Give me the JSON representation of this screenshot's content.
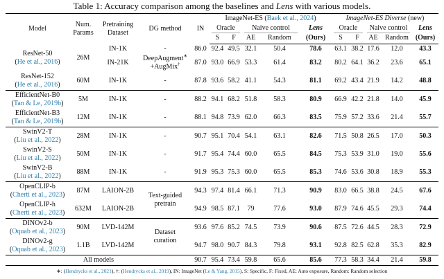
{
  "caption": [
    {
      "t": "Table 1: Accuracy comparison among the baselines and "
    },
    {
      "t": "Lens",
      "i": true
    },
    {
      "t": " with various models."
    }
  ],
  "colors": {
    "citation_link": "#2c7fad",
    "rule_gray": "#a9a9a9"
  },
  "header": {
    "left": [
      [
        "Model"
      ],
      [
        "Num.",
        "Params"
      ],
      [
        "Pretraining",
        "Dataset"
      ],
      [
        "DG method"
      ],
      [
        "IN"
      ]
    ],
    "groups": [
      {
        "label": [
          {
            "t": "ImageNet-ES ("
          },
          {
            "t": "Baek et al., 2024",
            "cite": true
          },
          {
            "t": ")"
          }
        ],
        "subs": [
          {
            "label": [
              {
                "t": "Oracle"
              }
            ],
            "span": 2,
            "rule": true
          },
          {
            "label": [
              {
                "t": "Naive control"
              }
            ],
            "span": 2,
            "rule": true
          },
          {
            "label": [
              {
                "t": "Lens",
                "i": true,
                "b": true
              }
            ],
            "span": 1,
            "rule": false
          }
        ],
        "leaves": [
          {
            "t": "S"
          },
          {
            "t": "F"
          },
          {
            "t": "AE"
          },
          {
            "t": "Random"
          },
          {
            "t": "(Ours)",
            "b": true
          }
        ]
      },
      {
        "label": [
          {
            "t": "ImageNet-ES Diverse",
            "i": true
          },
          {
            "t": " (new)"
          }
        ],
        "subs": [
          {
            "label": [
              {
                "t": "Oracle"
              }
            ],
            "span": 2,
            "rule": true
          },
          {
            "label": [
              {
                "t": "Naive control"
              }
            ],
            "span": 2,
            "rule": true
          },
          {
            "label": [
              {
                "t": "Lens",
                "i": true,
                "b": true
              }
            ],
            "span": 1,
            "rule": false
          }
        ],
        "leaves": [
          {
            "t": "S"
          },
          {
            "t": "F"
          },
          {
            "t": "AE"
          },
          {
            "t": "Random"
          },
          {
            "t": "(Ours)",
            "b": true
          }
        ]
      }
    ]
  },
  "rows": [
    {
      "model": "ResNet-50",
      "cite": "He et al., 2016",
      "model_span": 2,
      "params": "26M",
      "params_span": 2,
      "dataset": "IN-1K",
      "dg": [
        [
          "-"
        ]
      ],
      "vals": [
        "86.0",
        "92.4",
        "49.5",
        "32.1",
        "50.4",
        "78.6",
        "63.1",
        "38.2",
        "17.6",
        "12.0",
        "43.3"
      ]
    },
    {
      "dataset": "IN-21K",
      "dg": [
        [
          {
            "t": "DeepAugment"
          },
          {
            "t": "∗",
            "sup": true
          }
        ],
        [
          {
            "t": "+AugMix"
          },
          {
            "t": "†",
            "sup": true
          }
        ]
      ],
      "vals": [
        "87.0",
        "93.0",
        "66.9",
        "53.3",
        "61.4",
        "83.2",
        "80.2",
        "64.1",
        "36.2",
        "23.6",
        "65.1"
      ]
    },
    {
      "model": "ResNet-152",
      "cite": "He et al., 2016",
      "params": "60M",
      "dataset": "IN-1K",
      "dg": [
        [
          "-"
        ]
      ],
      "vals": [
        "87.8",
        "93.6",
        "58.2",
        "41.1",
        "54.3",
        "81.1",
        "69.2",
        "43.4",
        "21.9",
        "14.2",
        "48.8"
      ]
    },
    {
      "group_start": true,
      "model": "EfficientNet-B0",
      "cite": "Tan & Le, 2019b",
      "params": "5M",
      "dataset": "IN-1K",
      "dg": [
        [
          "-"
        ]
      ],
      "vals": [
        "88.2",
        "94.1",
        "68.2",
        "51.8",
        "58.3",
        "80.9",
        "66.9",
        "42.2",
        "21.8",
        "14.0",
        "45.9"
      ]
    },
    {
      "model": "EfficientNet-B3",
      "cite": "Tan & Le, 2019b",
      "params": "12M",
      "dataset": "IN-1K",
      "dg": [
        [
          "-"
        ]
      ],
      "vals": [
        "88.1",
        "94.8",
        "73.9",
        "62.0",
        "66.3",
        "83.5",
        "75.9",
        "57.2",
        "33.6",
        "21.4",
        "55.7"
      ]
    },
    {
      "group_start": true,
      "model": "SwinV2-T",
      "cite": "Liu et al., 2022",
      "params": "28M",
      "dataset": "IN-1K",
      "dg": [
        [
          "-"
        ]
      ],
      "vals": [
        "90.7",
        "95.1",
        "70.4",
        "54.1",
        "63.1",
        "82.6",
        "71.5",
        "50.8",
        "26.5",
        "17.0",
        "50.3"
      ]
    },
    {
      "model": "SwinV2-S",
      "cite": "Liu et al., 2022",
      "params": "50M",
      "dataset": "IN-1K",
      "dg": [
        [
          "-"
        ]
      ],
      "vals": [
        "91.7",
        "95.4",
        "74.4",
        "60.0",
        "65.5",
        "84.5",
        "75.3",
        "53.9",
        "31.0",
        "19.0",
        "55.6"
      ]
    },
    {
      "model": "SwinV2-B",
      "cite": "Liu et al., 2022",
      "params": "88M",
      "dataset": "IN-1K",
      "dg": [
        [
          "-"
        ]
      ],
      "vals": [
        "91.9",
        "95.3",
        "75.3",
        "60.0",
        "65.5",
        "85.3",
        "74.6",
        "53.6",
        "30.8",
        "18.9",
        "55.3"
      ]
    },
    {
      "group_start": true,
      "model": "OpenCLIP-b",
      "cite": "Cherti et al., 2023",
      "params": "87M",
      "dataset": "LAION-2B",
      "dg": [
        [
          "Text-guided"
        ],
        [
          "pretrain"
        ]
      ],
      "dg_span": 2,
      "vals": [
        "94.3",
        "97.4",
        "81.4",
        "66.1",
        "71.3",
        "90.9",
        "83.0",
        "66.5",
        "38.8",
        "24.5",
        "67.6"
      ]
    },
    {
      "model": "OpenCLIP-h",
      "cite": "Cherti et al., 2023",
      "params": "632M",
      "dataset": "LAION-2B",
      "vals": [
        "94.9",
        "98.5",
        "87.1",
        "79",
        "77.6",
        "93.0",
        "87.9",
        "74.6",
        "45.5",
        "29.3",
        "74.4"
      ]
    },
    {
      "group_start": true,
      "model": "DINOv2-b",
      "cite": "Oquab et al., 2023",
      "params": "90M",
      "dataset": "LVD-142M",
      "dg": [
        [
          "Dataset"
        ],
        [
          "curation"
        ]
      ],
      "dg_span": 2,
      "vals": [
        "93.6",
        "97.6",
        "85.2",
        "74.5",
        "73.9",
        "90.6",
        "87.5",
        "72.6",
        "44.5",
        "28.3",
        "72.9"
      ]
    },
    {
      "model": "DINOv2-g",
      "cite": "Oquab et al., 2023",
      "params": "1.1B",
      "dataset": "LVD-142M",
      "vals": [
        "94.7",
        "98.0",
        "90.7",
        "84.3",
        "79.8",
        "93.1",
        "92.8",
        "82.5",
        "62.8",
        "35.3",
        "82.9"
      ]
    },
    {
      "group_start": true,
      "span_label": "All models",
      "vals": [
        "90.7",
        "95.4",
        "73.4",
        "59.8",
        "65.6",
        "85.6",
        "77.3",
        "58.3",
        "34.4",
        "21.4",
        "59.8"
      ]
    }
  ],
  "footnote": [
    {
      "t": "∗: ("
    },
    {
      "t": "Hendrycks et al., 2021",
      "cite": true
    },
    {
      "t": "), †: ("
    },
    {
      "t": "Hendrycks et al., 2019",
      "cite": true
    },
    {
      "t": "), IN: ImageNet ("
    },
    {
      "t": "Le & Yang, 2015",
      "cite": true
    },
    {
      "t": "), S: Specific, F: Fixed, AE: Auto exposure, Random: Random selection"
    }
  ]
}
